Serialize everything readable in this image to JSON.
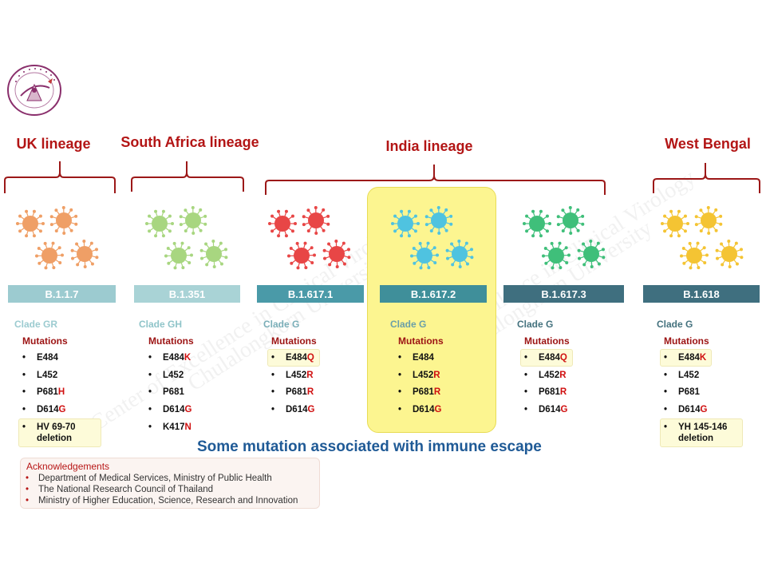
{
  "logo_text": "Center of Excellence in Clinical Virology",
  "lineages": [
    {
      "id": "uk",
      "title": "UK lineage"
    },
    {
      "id": "sa",
      "title": "South Africa lineage"
    },
    {
      "id": "india",
      "title": "India lineage"
    },
    {
      "id": "wb",
      "title": "West Bengal"
    }
  ],
  "variants": [
    {
      "name": "B.1.1.7",
      "clade": "Clade GR",
      "mutations_label": "Mutations",
      "virus_color": "#ef9f66",
      "bar_color": "#9ccbd0",
      "clade_color": "#9ccbd0",
      "mutations": [
        {
          "text": "E484",
          "suffix": ""
        },
        {
          "text": "L452",
          "suffix": ""
        },
        {
          "text": "P681",
          "suffix": "H"
        },
        {
          "text": "D614",
          "suffix": "G"
        },
        {
          "text": "HV 69-70",
          "line2": "deletion",
          "suffix": "",
          "highlight": true
        }
      ]
    },
    {
      "name": "B.1.351",
      "clade": "Clade GH",
      "mutations_label": "Mutations",
      "virus_color": "#a8d680",
      "bar_color": "#a9d3d6",
      "clade_color": "#8fc4c9",
      "mutations": [
        {
          "text": "E484",
          "suffix": "K"
        },
        {
          "text": "L452",
          "suffix": ""
        },
        {
          "text": "P681",
          "suffix": ""
        },
        {
          "text": "D614",
          "suffix": "G"
        },
        {
          "text": "K417",
          "suffix": "N"
        }
      ]
    },
    {
      "name": "B.1.617.1",
      "clade": "Clade G",
      "mutations_label": "Mutations",
      "virus_color": "#e84646",
      "bar_color": "#4a9aa8",
      "clade_color": "#7aaeb8",
      "mutations": [
        {
          "text": "E484",
          "suffix": "Q",
          "highlight": true
        },
        {
          "text": "L452",
          "suffix": "R"
        },
        {
          "text": "P681",
          "suffix": "R"
        },
        {
          "text": "D614",
          "suffix": "G"
        }
      ]
    },
    {
      "name": "B.1.617.2",
      "clade": "Clade G",
      "mutations_label": "Mutations",
      "virus_color": "#4fc3e0",
      "bar_color": "#3f8f9a",
      "clade_color": "#6a9fa8",
      "mutations": [
        {
          "text": "E484",
          "suffix": ""
        },
        {
          "text": "L452",
          "suffix": "R"
        },
        {
          "text": "P681",
          "suffix": "R"
        },
        {
          "text": "D614",
          "suffix": "G"
        }
      ]
    },
    {
      "name": "B.1.617.3",
      "clade": "Clade G",
      "mutations_label": "Mutations",
      "virus_color": "#3fbf7a",
      "bar_color": "#3f6f7f",
      "clade_color": "#44727e",
      "mutations": [
        {
          "text": "E484",
          "suffix": "Q",
          "highlight": true
        },
        {
          "text": "L452",
          "suffix": "R"
        },
        {
          "text": "P681",
          "suffix": "R"
        },
        {
          "text": "D614",
          "suffix": "G"
        }
      ]
    },
    {
      "name": "B.1.618",
      "clade": "Clade G",
      "mutations_label": "Mutations",
      "virus_color": "#f4c433",
      "bar_color": "#3f6f7f",
      "clade_color": "#44727e",
      "mutations": [
        {
          "text": "E484",
          "suffix": "K",
          "highlight": true
        },
        {
          "text": "L452",
          "suffix": ""
        },
        {
          "text": "P681",
          "suffix": ""
        },
        {
          "text": "D614",
          "suffix": "G"
        },
        {
          "text": "YH 145-146",
          "line2": "deletion",
          "suffix": "",
          "highlight": true
        }
      ]
    }
  ],
  "immune_note": "Some mutation associated with immune escape",
  "acknowledgements": {
    "title": "Acknowledgements",
    "items": [
      "Department of Medical Services, Ministry of Public Health",
      "The National Research Council of Thailand",
      "Ministry of Higher Education, Science, Research and Innovation"
    ]
  },
  "watermark": [
    "Center of Excellence in Clinical Virology",
    "Chulalongkorn University"
  ],
  "colors": {
    "title_red": "#b31515",
    "mutation_red": "#d01010",
    "note_blue": "#1f5a96",
    "india_highlight": "#fcf590"
  }
}
